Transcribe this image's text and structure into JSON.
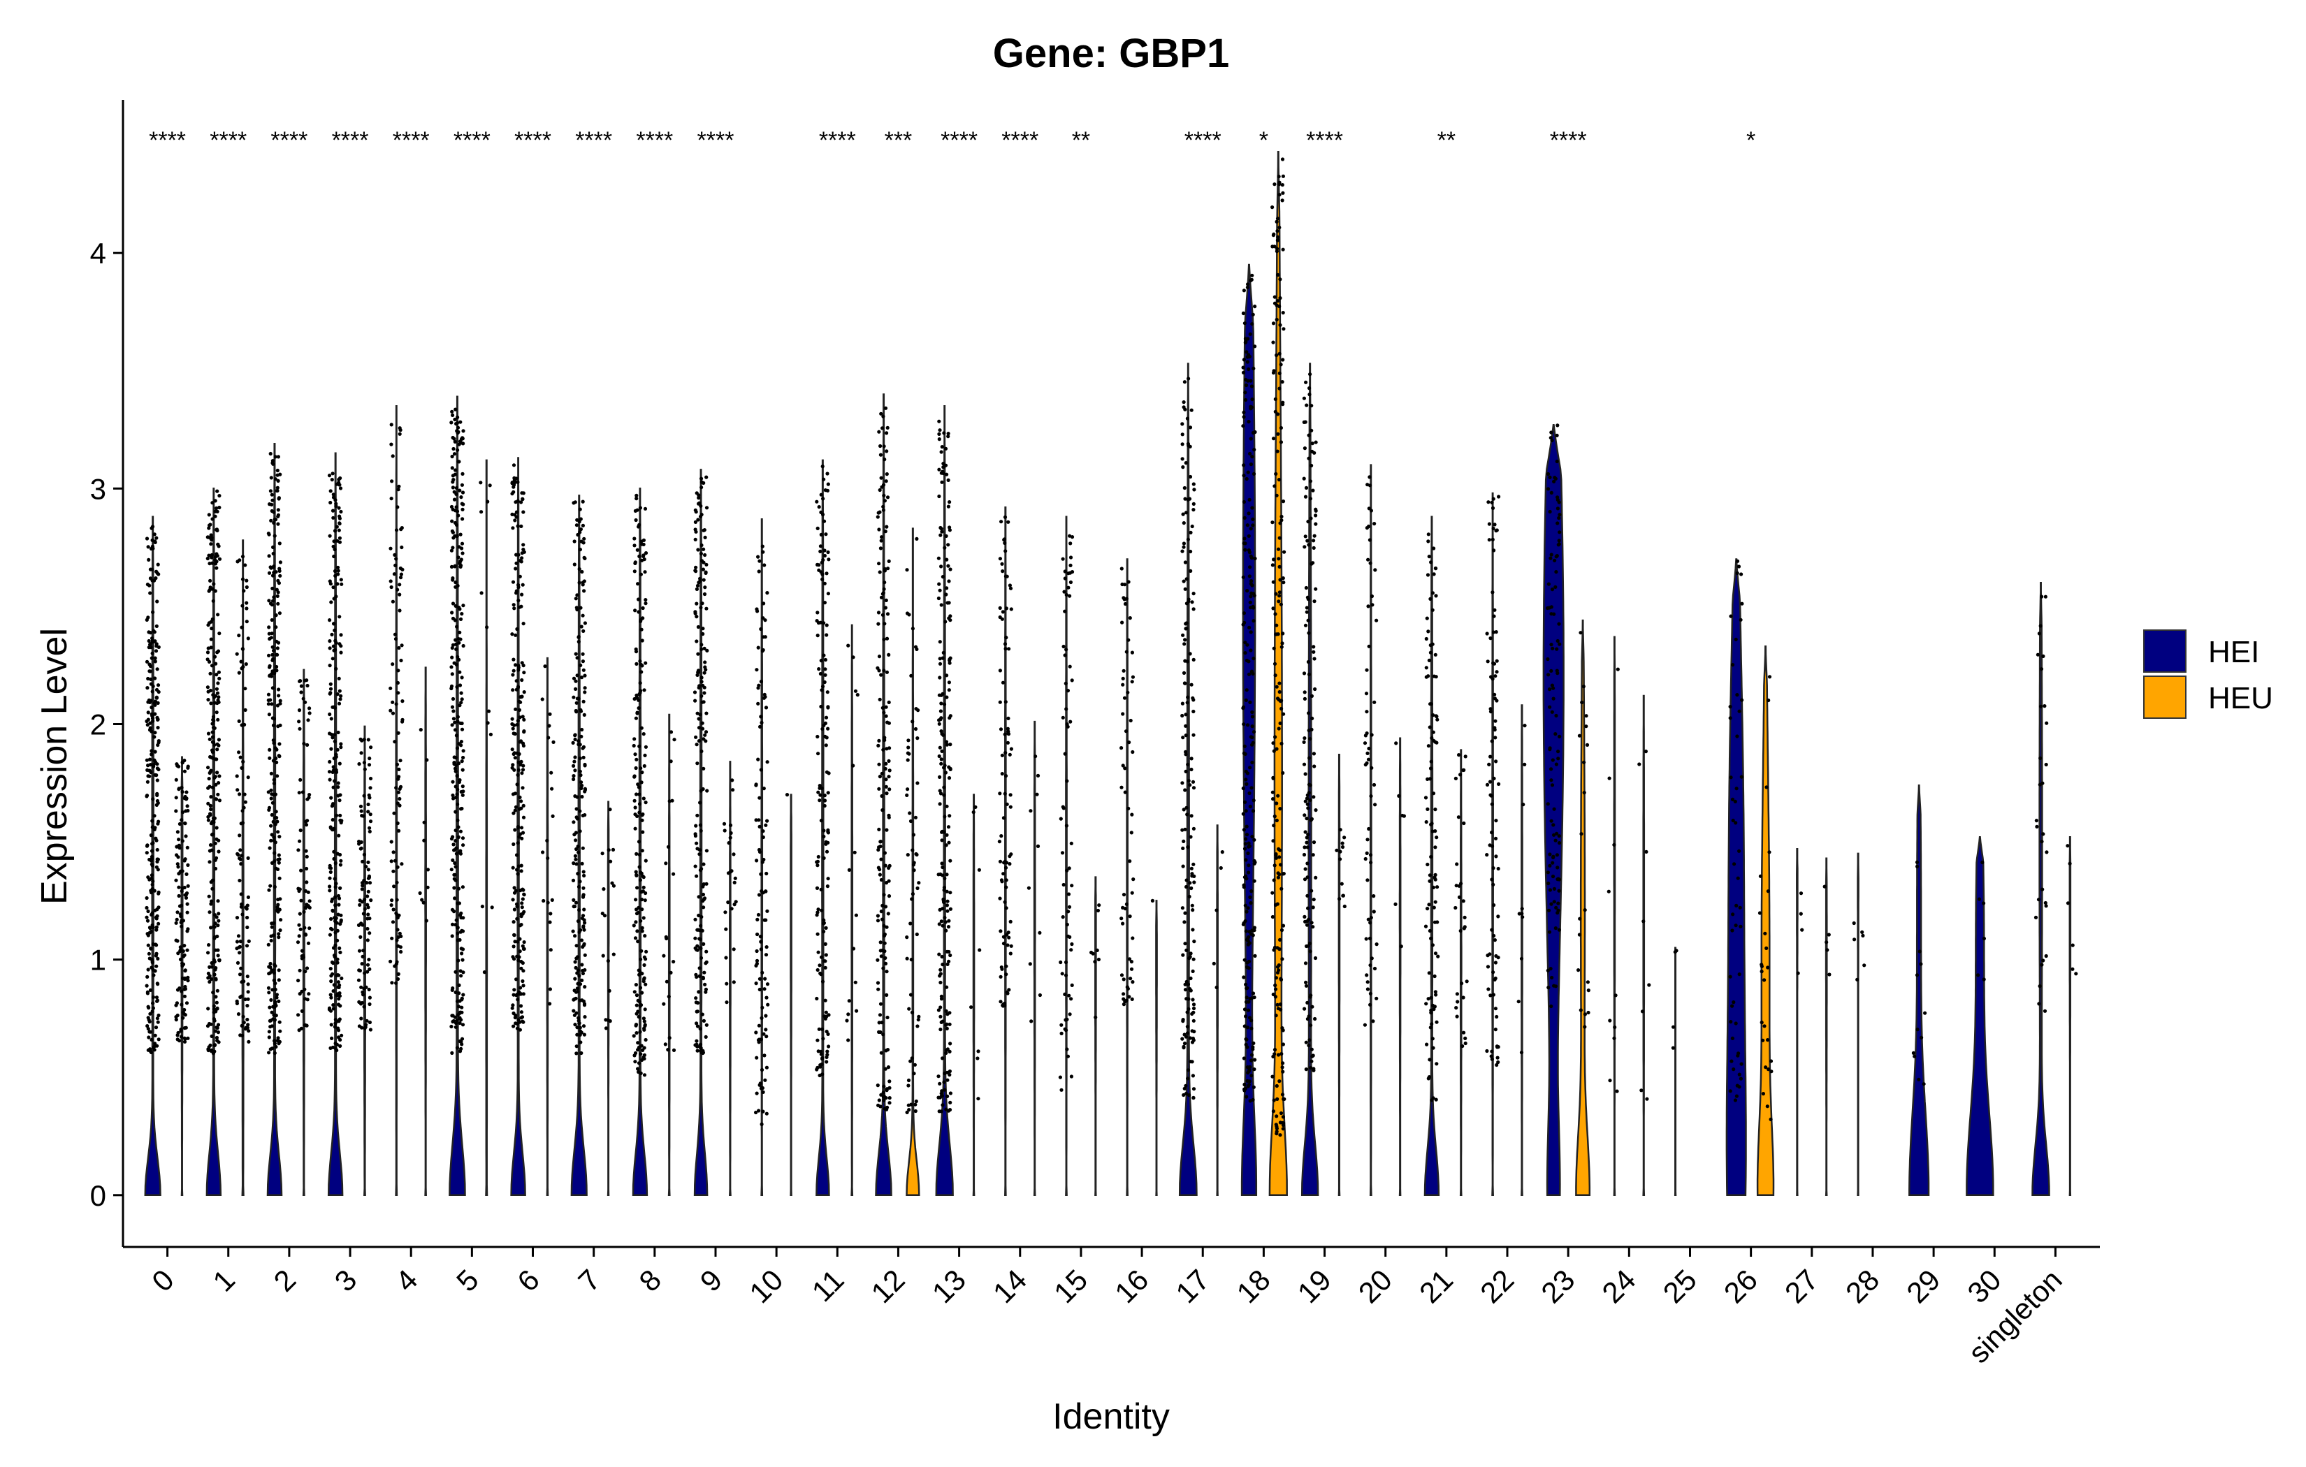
{
  "chart_data": {
    "type": "violin",
    "title": "Gene: GBP1",
    "xlabel": "Identity",
    "ylabel": "Expression Level",
    "ylim": [
      -0.22,
      4.65
    ],
    "yticks": [
      0,
      1,
      2,
      3,
      4
    ],
    "grid": false,
    "legend_position": "right",
    "categories": [
      "0",
      "1",
      "2",
      "3",
      "4",
      "5",
      "6",
      "7",
      "8",
      "9",
      "10",
      "11",
      "12",
      "13",
      "14",
      "15",
      "16",
      "17",
      "18",
      "19",
      "20",
      "21",
      "22",
      "23",
      "24",
      "25",
      "26",
      "27",
      "28",
      "29",
      "30",
      "singleton"
    ],
    "significance": [
      "****",
      "****",
      "****",
      "****",
      "****",
      "****",
      "****",
      "****",
      "****",
      "****",
      "",
      "****",
      "***",
      "****",
      "****",
      "**",
      "",
      "****",
      "*",
      "****",
      "",
      "**",
      "",
      "****",
      "",
      "",
      "*",
      "",
      "",
      "",
      "",
      ""
    ],
    "series": [
      {
        "name": "HEI",
        "color": "#000080",
        "max": [
          2.88,
          3.0,
          3.19,
          3.15,
          3.35,
          3.39,
          3.13,
          2.97,
          3.0,
          3.08,
          2.87,
          3.12,
          3.4,
          3.35,
          2.92,
          2.88,
          2.7,
          3.53,
          3.95,
          3.53,
          3.1,
          2.88,
          2.98,
          3.27,
          2.37,
          1.05,
          2.7,
          1.47,
          1.45,
          1.74,
          1.52,
          2.6
        ],
        "hump_width": [
          0.55,
          0.5,
          0.5,
          0.5,
          0.02,
          0.55,
          0.5,
          0.55,
          0.5,
          0.45,
          0.02,
          0.45,
          0.55,
          0.6,
          0.02,
          0.02,
          0.02,
          0.6,
          0.45,
          0.55,
          0.02,
          0.5,
          0.02,
          0.35,
          0.02,
          0.02,
          0.5,
          0.02,
          0.02,
          0.7,
          0.95,
          0.6
        ],
        "hump_height": [
          0.22,
          0.25,
          0.24,
          0.25,
          0.0,
          0.3,
          0.25,
          0.27,
          0.25,
          0.25,
          0.0,
          0.22,
          0.25,
          0.3,
          0.0,
          0.0,
          0.0,
          0.3,
          0.45,
          0.3,
          0.0,
          0.27,
          0.0,
          0.4,
          0.0,
          0.0,
          0.8,
          0.0,
          0.0,
          0.5,
          0.5,
          0.3
        ],
        "upper_width": [
          0.05,
          0.05,
          0.05,
          0.05,
          0.03,
          0.06,
          0.05,
          0.05,
          0.05,
          0.05,
          0.03,
          0.05,
          0.05,
          0.05,
          0.03,
          0.03,
          0.03,
          0.07,
          0.45,
          0.1,
          0.03,
          0.05,
          0.03,
          0.75,
          0.03,
          0.03,
          0.55,
          0.03,
          0.03,
          0.15,
          0.3,
          0.1
        ],
        "upper_center": [
          1.5,
          1.5,
          1.5,
          1.5,
          1.5,
          1.5,
          1.5,
          1.5,
          1.5,
          1.5,
          1.5,
          1.5,
          1.5,
          1.5,
          1.5,
          1.5,
          1.5,
          1.5,
          2.5,
          1.5,
          1.5,
          1.5,
          1.5,
          2.2,
          1.5,
          1.5,
          1.4,
          1.5,
          1.5,
          1.2,
          1.1,
          1.5
        ],
        "jitter": [
          {
            "n": 260,
            "lo": 0.6,
            "hi": 2.85
          },
          {
            "n": 240,
            "lo": 0.6,
            "hi": 3.0
          },
          {
            "n": 240,
            "lo": 0.6,
            "hi": 3.15
          },
          {
            "n": 230,
            "lo": 0.6,
            "hi": 3.1
          },
          {
            "n": 100,
            "lo": 0.9,
            "hi": 3.3
          },
          {
            "n": 270,
            "lo": 0.6,
            "hi": 3.35
          },
          {
            "n": 220,
            "lo": 0.7,
            "hi": 3.1
          },
          {
            "n": 200,
            "lo": 0.6,
            "hi": 2.95
          },
          {
            "n": 190,
            "lo": 0.5,
            "hi": 2.98
          },
          {
            "n": 190,
            "lo": 0.6,
            "hi": 3.05
          },
          {
            "n": 110,
            "lo": 0.3,
            "hi": 2.85
          },
          {
            "n": 150,
            "lo": 0.5,
            "hi": 3.1
          },
          {
            "n": 170,
            "lo": 0.35,
            "hi": 3.38
          },
          {
            "n": 200,
            "lo": 0.35,
            "hi": 3.3
          },
          {
            "n": 90,
            "lo": 0.8,
            "hi": 2.9
          },
          {
            "n": 70,
            "lo": 0.3,
            "hi": 2.87
          },
          {
            "n": 60,
            "lo": 0.8,
            "hi": 2.68
          },
          {
            "n": 170,
            "lo": 0.4,
            "hi": 3.5
          },
          {
            "n": 240,
            "lo": 0.4,
            "hi": 3.95
          },
          {
            "n": 140,
            "lo": 0.5,
            "hi": 3.5
          },
          {
            "n": 60,
            "lo": 0.7,
            "hi": 3.08
          },
          {
            "n": 100,
            "lo": 0.4,
            "hi": 2.87
          },
          {
            "n": 90,
            "lo": 0.55,
            "hi": 2.97
          },
          {
            "n": 110,
            "lo": 0.8,
            "hi": 3.27
          },
          {
            "n": 10,
            "lo": 0.4,
            "hi": 2.35
          },
          {
            "n": 4,
            "lo": 0.55,
            "hi": 1.05
          },
          {
            "n": 50,
            "lo": 0.4,
            "hi": 2.7
          },
          {
            "n": 4,
            "lo": 0.9,
            "hi": 1.45
          },
          {
            "n": 6,
            "lo": 0.9,
            "hi": 1.45
          },
          {
            "n": 12,
            "lo": 0.45,
            "hi": 1.74
          },
          {
            "n": 6,
            "lo": 0.9,
            "hi": 1.5
          },
          {
            "n": 30,
            "lo": 0.7,
            "hi": 2.58
          }
        ]
      },
      {
        "name": "HEU",
        "color": "#FFA500",
        "max": [
          1.86,
          2.78,
          2.23,
          1.99,
          2.24,
          3.12,
          2.28,
          1.67,
          2.04,
          1.84,
          1.7,
          2.42,
          2.83,
          1.7,
          2.01,
          1.35,
          1.25,
          1.57,
          4.43,
          1.87,
          1.94,
          1.89,
          2.08,
          2.44,
          2.12,
          0.0,
          2.33,
          1.43,
          0.0,
          0.0,
          0.0,
          1.52
        ],
        "hump_width": [
          0.02,
          0.02,
          0.02,
          0.02,
          0.02,
          0.02,
          0.02,
          0.02,
          0.02,
          0.02,
          0.02,
          0.02,
          0.45,
          0.02,
          0.02,
          0.02,
          0.02,
          0.02,
          0.5,
          0.02,
          0.02,
          0.02,
          0.02,
          0.45,
          0.02,
          0.02,
          0.45,
          0.02,
          0.02,
          0.02,
          0.02,
          0.02
        ],
        "hump_height": [
          0.0,
          0.0,
          0.0,
          0.0,
          0.0,
          0.0,
          0.0,
          0.0,
          0.0,
          0.0,
          0.0,
          0.0,
          0.2,
          0.0,
          0.0,
          0.0,
          0.0,
          0.0,
          0.4,
          0.0,
          0.0,
          0.0,
          0.0,
          0.35,
          0.0,
          0.0,
          0.4,
          0.0,
          0.0,
          0.0,
          0.0,
          0.0
        ],
        "upper_width": [
          0.04,
          0.04,
          0.04,
          0.04,
          0.03,
          0.03,
          0.03,
          0.03,
          0.03,
          0.03,
          0.03,
          0.03,
          0.03,
          0.03,
          0.03,
          0.03,
          0.03,
          0.03,
          0.28,
          0.03,
          0.03,
          0.03,
          0.03,
          0.15,
          0.03,
          0.0,
          0.3,
          0.03,
          0.0,
          0.0,
          0.0,
          0.03
        ],
        "upper_center": [
          1.2,
          1.0,
          1.2,
          1.0,
          1.3,
          1.0,
          1.2,
          1.2,
          1.0,
          1.0,
          1.2,
          1.2,
          1.2,
          1.0,
          1.2,
          1.0,
          1.0,
          1.0,
          1.8,
          1.2,
          1.2,
          1.0,
          1.2,
          1.2,
          1.2,
          1.0,
          1.0,
          1.0,
          1.0,
          1.0,
          1.0,
          1.2
        ],
        "jitter": [
          {
            "n": 130,
            "lo": 0.65,
            "hi": 1.85
          },
          {
            "n": 100,
            "lo": 0.65,
            "hi": 2.75
          },
          {
            "n": 80,
            "lo": 0.7,
            "hi": 2.2
          },
          {
            "n": 100,
            "lo": 0.7,
            "hi": 1.98
          },
          {
            "n": 10,
            "lo": 1.1,
            "hi": 2.2
          },
          {
            "n": 12,
            "lo": 0.7,
            "hi": 3.1
          },
          {
            "n": 20,
            "lo": 0.8,
            "hi": 2.25
          },
          {
            "n": 18,
            "lo": 0.7,
            "hi": 1.65
          },
          {
            "n": 20,
            "lo": 0.6,
            "hi": 2.0
          },
          {
            "n": 25,
            "lo": 0.8,
            "hi": 1.82
          },
          {
            "n": 1,
            "lo": 1.7,
            "hi": 1.7
          },
          {
            "n": 15,
            "lo": 0.65,
            "hi": 2.4
          },
          {
            "n": 60,
            "lo": 0.35,
            "hi": 2.8
          },
          {
            "n": 8,
            "lo": 0.4,
            "hi": 1.68
          },
          {
            "n": 10,
            "lo": 0.7,
            "hi": 2.0
          },
          {
            "n": 8,
            "lo": 0.6,
            "hi": 1.35
          },
          {
            "n": 1,
            "lo": 1.25,
            "hi": 1.25
          },
          {
            "n": 5,
            "lo": 0.6,
            "hi": 1.55
          },
          {
            "n": 200,
            "lo": 0.25,
            "hi": 4.4
          },
          {
            "n": 12,
            "lo": 1.2,
            "hi": 1.85
          },
          {
            "n": 6,
            "lo": 0.85,
            "hi": 1.92
          },
          {
            "n": 30,
            "lo": 0.6,
            "hi": 1.88
          },
          {
            "n": 10,
            "lo": 0.6,
            "hi": 2.05
          },
          {
            "n": 20,
            "lo": 0.5,
            "hi": 2.4
          },
          {
            "n": 8,
            "lo": 0.4,
            "hi": 2.1
          },
          {
            "n": 0,
            "lo": 0,
            "hi": 0
          },
          {
            "n": 25,
            "lo": 0.3,
            "hi": 2.3
          },
          {
            "n": 5,
            "lo": 0.9,
            "hi": 1.4
          },
          {
            "n": 0,
            "lo": 0,
            "hi": 0
          },
          {
            "n": 0,
            "lo": 0,
            "hi": 0
          },
          {
            "n": 0,
            "lo": 0,
            "hi": 0
          },
          {
            "n": 6,
            "lo": 0.9,
            "hi": 1.5
          }
        ]
      }
    ]
  }
}
